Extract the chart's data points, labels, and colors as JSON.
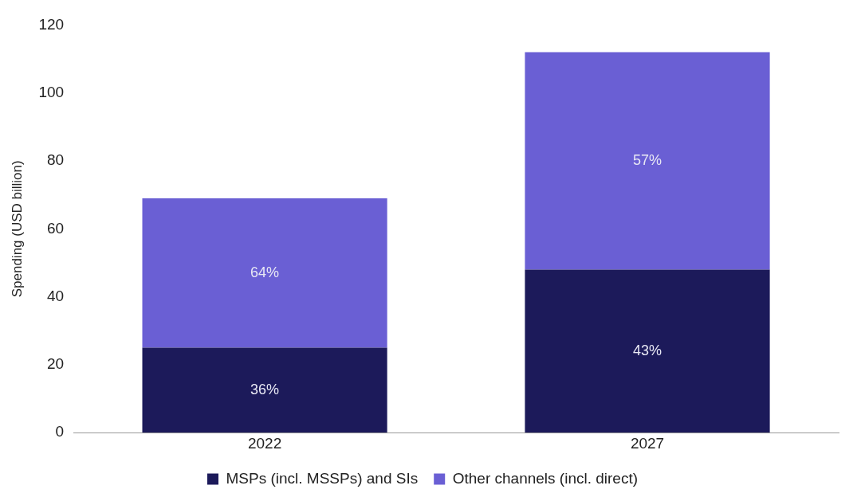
{
  "chart_data": {
    "type": "bar",
    "stacked": true,
    "ylabel": "Spending (USD billion)",
    "categories": [
      "2022",
      "2027"
    ],
    "series": [
      {
        "name": "MSPs (incl. MSSPs) and SIs",
        "color": "#1c1a5a",
        "values": [
          25,
          48
        ]
      },
      {
        "name": "Other channels (incl. direct)",
        "color": "#6a5fd4",
        "values": [
          44,
          64
        ]
      }
    ],
    "annotations": [
      "36%",
      "43%",
      "64%",
      "57%"
    ],
    "ylim": [
      0,
      120
    ],
    "yticks": [
      0,
      20,
      40,
      60,
      80,
      100,
      120
    ],
    "grid": false,
    "legend": "bottom"
  }
}
